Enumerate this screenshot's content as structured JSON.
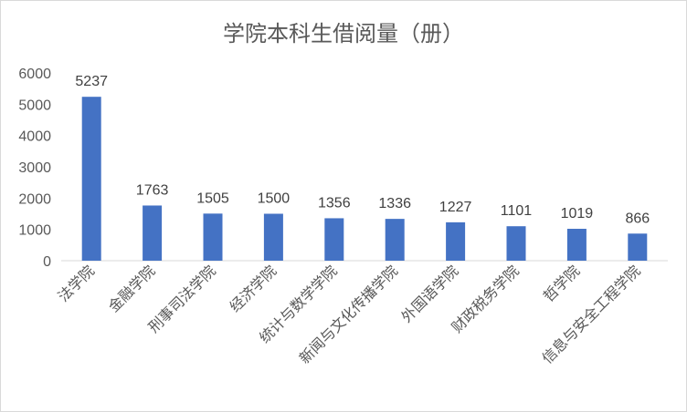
{
  "chart_data": {
    "type": "bar",
    "title": "学院本科生借阅量（册）",
    "categories": [
      "法学院",
      "金融学院",
      "刑事司法学院",
      "经济学院",
      "统计与数学学院",
      "新闻与文化传播学院",
      "外国语学院",
      "财政税务学院",
      "哲学院",
      "信息与安全工程学院"
    ],
    "values": [
      5237,
      1763,
      1505,
      1500,
      1356,
      1336,
      1227,
      1101,
      1019,
      866
    ],
    "ylim": [
      0,
      6000
    ],
    "yticks": [
      "0",
      "1000",
      "2000",
      "3000",
      "4000",
      "5000",
      "6000"
    ],
    "grid": false,
    "legend": "none",
    "bar_color": "#4472c4",
    "axis_color": "#d9d9d9"
  }
}
